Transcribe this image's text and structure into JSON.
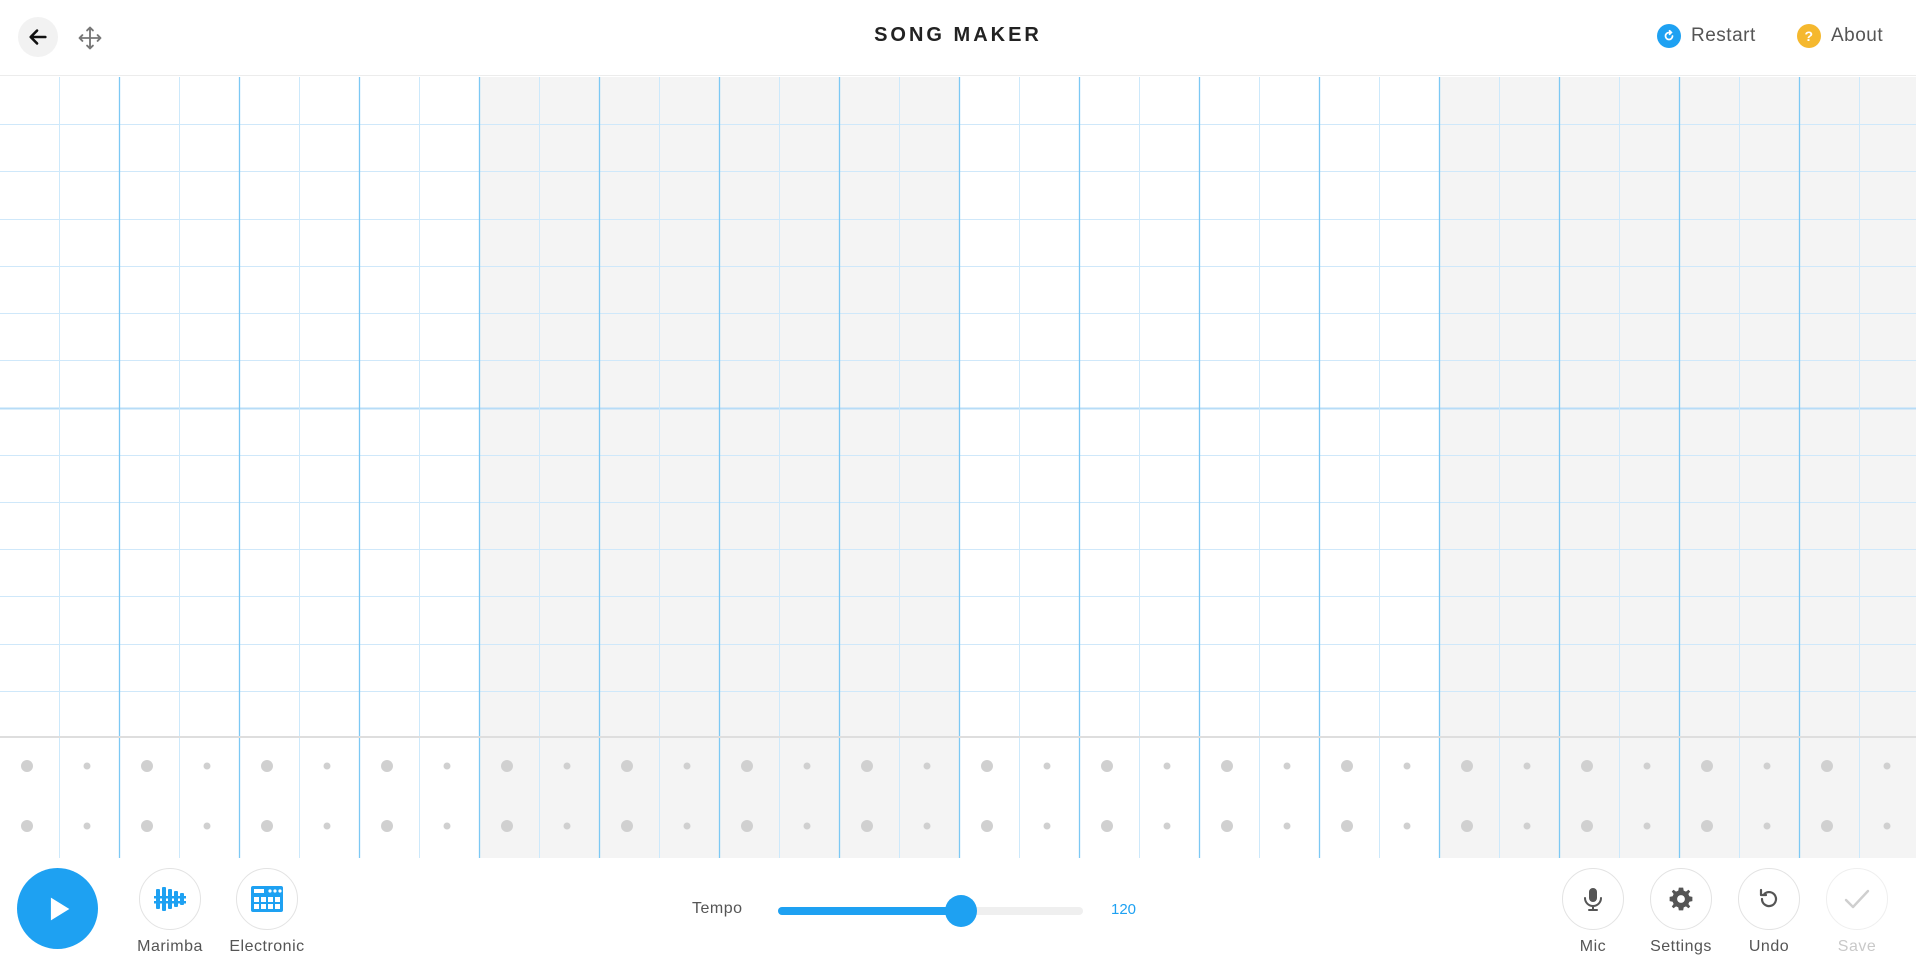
{
  "header": {
    "title": "SONG MAKER",
    "back_icon": "arrow-left-icon",
    "move_icon": "move-arrows-icon",
    "restart_label": "Restart",
    "about_label": "About",
    "restart_icon": "restart-icon",
    "about_icon": "question-icon"
  },
  "grid": {
    "columns": 32,
    "melody_rows": 14,
    "rhythm_rows": 2,
    "beats_per_bar": 8,
    "line_color_major": "#7cc8f4",
    "line_color_minor": "#cde9fb",
    "row_line_color": "#cfe8fa",
    "shade_color": "#f4f4f4",
    "rhythm_dot_color": "#d0d0d0"
  },
  "instruments": [
    {
      "label": "Marimba",
      "icon": "marimba-icon"
    },
    {
      "label": "Electronic",
      "icon": "drum-machine-icon"
    }
  ],
  "tempo": {
    "label": "Tempo",
    "value": "120",
    "fraction": 0.6
  },
  "tools": [
    {
      "label": "Mic",
      "icon": "mic-icon",
      "enabled": true
    },
    {
      "label": "Settings",
      "icon": "gear-icon",
      "enabled": true
    },
    {
      "label": "Undo",
      "icon": "undo-icon",
      "enabled": true
    },
    {
      "label": "Save",
      "icon": "check-icon",
      "enabled": false
    }
  ],
  "colors": {
    "accent": "#1ea1f2",
    "about": "#f5b82e"
  }
}
